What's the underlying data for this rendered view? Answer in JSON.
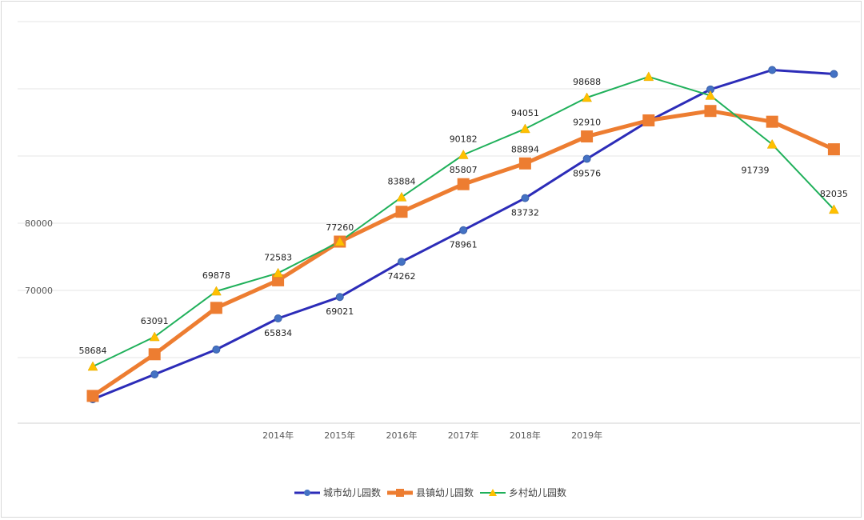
{
  "chart_data": {
    "type": "line",
    "title": "",
    "xlabel": "",
    "ylabel": "",
    "categories": [
      "",
      "",
      "",
      "2014年",
      "2015年",
      "2016年",
      "2017年",
      "2018年",
      "2019年",
      "",
      "",
      "",
      ""
    ],
    "y_ticks": [
      70000,
      80000
    ],
    "ylim": [
      50000,
      111000
    ],
    "grid": true,
    "legend": "bottom",
    "series": [
      {
        "name": "城市幼儿园数",
        "color": "#2c2cb8",
        "marker": "circle",
        "values": [
          53800,
          57500,
          61200,
          65834,
          69021,
          74262,
          78961,
          83732,
          89576,
          95200,
          99900,
          102800,
          102200
        ],
        "labels": [
          "",
          "",
          "",
          "65834",
          "69021",
          "74262",
          "78961",
          "83732",
          "89576",
          "",
          "",
          "",
          ""
        ]
      },
      {
        "name": "县镇幼儿园数",
        "color": "#ed7d31",
        "marker": "square",
        "values": [
          54300,
          60500,
          67400,
          71500,
          77260,
          81700,
          85807,
          88894,
          92910,
          95300,
          96700,
          95100,
          91000
        ],
        "labels": [
          "",
          "",
          "",
          "",
          "77260",
          "",
          "85807",
          "88894",
          "92910",
          "",
          "",
          "",
          ""
        ]
      },
      {
        "name": "乡村幼儿园数",
        "color": "#1fb05a",
        "marker": "triangle",
        "values": [
          58684,
          63091,
          69878,
          72583,
          77260,
          83884,
          90182,
          94051,
          98688,
          101800,
          99000,
          91739,
          82035
        ],
        "labels": [
          "58684",
          "63091",
          "69878",
          "72583",
          "",
          "83884",
          "90182",
          "94051",
          "98688",
          "",
          "",
          "91739",
          "82035"
        ]
      }
    ]
  }
}
